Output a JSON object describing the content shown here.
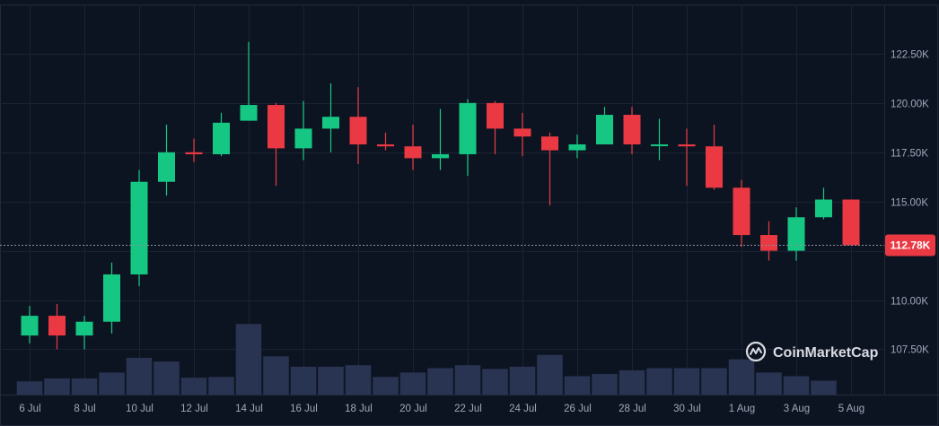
{
  "colors": {
    "background": "#0d1421",
    "border": "#222a3a",
    "grid": "#1b2232",
    "up": "#16c784",
    "down": "#ea3943",
    "volume": "#293452",
    "label": "#a1a7bb",
    "price_badge_bg": "#ea3943",
    "price_badge_text": "#ffffff",
    "watermark": "#d8dbe3"
  },
  "watermark": {
    "text": "CoinMarketCap",
    "icon": "coinmarketcap-logo-icon"
  },
  "current_price": {
    "value": 112.78,
    "label": "112.78K"
  },
  "chart_data": {
    "type": "candlestick",
    "x_tick_labels": [
      "6 Jul",
      "8 Jul",
      "10 Jul",
      "12 Jul",
      "14 Jul",
      "16 Jul",
      "18 Jul",
      "20 Jul",
      "22 Jul",
      "24 Jul",
      "26 Jul",
      "28 Jul",
      "30 Jul",
      "1 Aug",
      "3 Aug",
      "5 Aug"
    ],
    "y_ticks": [
      {
        "value": 107.5,
        "label": "107.50K"
      },
      {
        "value": 110.0,
        "label": "110.00K"
      },
      {
        "value": 112.5,
        "label": "112.50K"
      },
      {
        "value": 115.0,
        "label": "115.00K"
      },
      {
        "value": 117.5,
        "label": "117.50K"
      },
      {
        "value": 120.0,
        "label": "120.00K"
      },
      {
        "value": 122.5,
        "label": "122.50K"
      }
    ],
    "ylim": [
      105.2,
      125.0
    ],
    "volume_max": 1.0,
    "candles": [
      {
        "date": "6 Jul",
        "open": 108.2,
        "high": 109.7,
        "low": 107.8,
        "close": 109.2,
        "volume": 0.18
      },
      {
        "date": "7 Jul",
        "open": 109.2,
        "high": 109.8,
        "low": 107.5,
        "close": 108.2,
        "volume": 0.22
      },
      {
        "date": "8 Jul",
        "open": 108.2,
        "high": 109.2,
        "low": 107.5,
        "close": 108.9,
        "volume": 0.22
      },
      {
        "date": "9 Jul",
        "open": 108.9,
        "high": 111.9,
        "low": 108.3,
        "close": 111.3,
        "volume": 0.3
      },
      {
        "date": "10 Jul",
        "open": 111.3,
        "high": 116.6,
        "low": 110.7,
        "close": 116.0,
        "volume": 0.5
      },
      {
        "date": "11 Jul",
        "open": 116.0,
        "high": 118.9,
        "low": 115.3,
        "close": 117.5,
        "volume": 0.45
      },
      {
        "date": "12 Jul",
        "open": 117.5,
        "high": 118.2,
        "low": 117.0,
        "close": 117.4,
        "volume": 0.23
      },
      {
        "date": "13 Jul",
        "open": 117.4,
        "high": 119.5,
        "low": 117.3,
        "close": 119.0,
        "volume": 0.24
      },
      {
        "date": "14 Jul",
        "open": 119.1,
        "high": 123.1,
        "low": 119.1,
        "close": 119.9,
        "volume": 0.96
      },
      {
        "date": "15 Jul",
        "open": 119.9,
        "high": 120.0,
        "low": 115.8,
        "close": 117.7,
        "volume": 0.52
      },
      {
        "date": "16 Jul",
        "open": 117.7,
        "high": 120.1,
        "low": 117.1,
        "close": 118.7,
        "volume": 0.38
      },
      {
        "date": "17 Jul",
        "open": 118.7,
        "high": 121.0,
        "low": 117.5,
        "close": 119.3,
        "volume": 0.38
      },
      {
        "date": "18 Jul",
        "open": 119.3,
        "high": 120.8,
        "low": 116.9,
        "close": 117.9,
        "volume": 0.4
      },
      {
        "date": "19 Jul",
        "open": 117.9,
        "high": 118.5,
        "low": 117.6,
        "close": 117.8,
        "volume": 0.24
      },
      {
        "date": "20 Jul",
        "open": 117.8,
        "high": 118.9,
        "low": 116.6,
        "close": 117.2,
        "volume": 0.3
      },
      {
        "date": "21 Jul",
        "open": 117.2,
        "high": 119.7,
        "low": 116.6,
        "close": 117.4,
        "volume": 0.36
      },
      {
        "date": "22 Jul",
        "open": 117.4,
        "high": 120.2,
        "low": 116.3,
        "close": 120.0,
        "volume": 0.4
      },
      {
        "date": "23 Jul",
        "open": 120.0,
        "high": 120.1,
        "low": 117.4,
        "close": 118.7,
        "volume": 0.35
      },
      {
        "date": "24 Jul",
        "open": 118.7,
        "high": 119.5,
        "low": 117.3,
        "close": 118.3,
        "volume": 0.38
      },
      {
        "date": "25 Jul",
        "open": 118.3,
        "high": 118.5,
        "low": 114.8,
        "close": 117.6,
        "volume": 0.54
      },
      {
        "date": "26 Jul",
        "open": 117.6,
        "high": 118.4,
        "low": 117.2,
        "close": 117.9,
        "volume": 0.25
      },
      {
        "date": "27 Jul",
        "open": 117.9,
        "high": 119.8,
        "low": 117.9,
        "close": 119.4,
        "volume": 0.28
      },
      {
        "date": "28 Jul",
        "open": 119.4,
        "high": 119.8,
        "low": 117.4,
        "close": 117.9,
        "volume": 0.33
      },
      {
        "date": "29 Jul",
        "open": 117.9,
        "high": 119.2,
        "low": 117.1,
        "close": 117.9,
        "volume": 0.36
      },
      {
        "date": "30 Jul",
        "open": 117.9,
        "high": 118.7,
        "low": 115.8,
        "close": 117.8,
        "volume": 0.36
      },
      {
        "date": "31 Jul",
        "open": 117.8,
        "high": 118.9,
        "low": 115.6,
        "close": 115.7,
        "volume": 0.36
      },
      {
        "date": "1 Aug",
        "open": 115.7,
        "high": 116.1,
        "low": 112.7,
        "close": 113.3,
        "volume": 0.48
      },
      {
        "date": "2 Aug",
        "open": 113.3,
        "high": 114.0,
        "low": 112.0,
        "close": 112.5,
        "volume": 0.3
      },
      {
        "date": "3 Aug",
        "open": 112.5,
        "high": 114.7,
        "low": 112.0,
        "close": 114.2,
        "volume": 0.25
      },
      {
        "date": "4 Aug",
        "open": 114.2,
        "high": 115.7,
        "low": 114.1,
        "close": 115.1,
        "volume": 0.19
      },
      {
        "date": "5 Aug",
        "open": 115.1,
        "high": 115.1,
        "low": 112.78,
        "close": 112.78,
        "volume": 0.0
      }
    ],
    "grid": true,
    "legend": "none"
  }
}
